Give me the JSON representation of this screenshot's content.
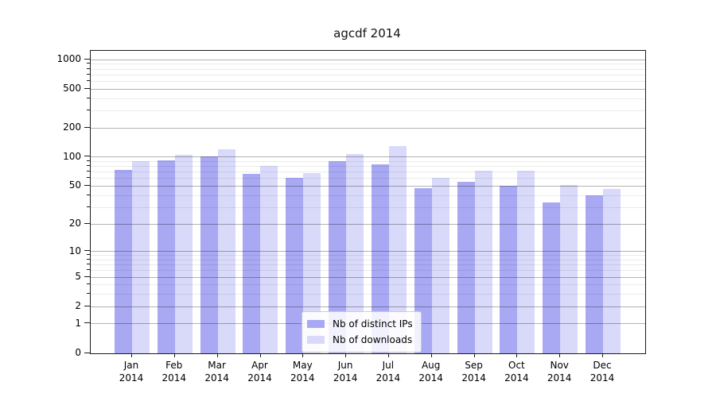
{
  "title": "agcdf 2014",
  "chart_data": {
    "type": "bar",
    "title": "agcdf 2014",
    "categories": [
      "Jan 2014",
      "Feb 2014",
      "Mar 2014",
      "Apr 2014",
      "May 2014",
      "Jun 2014",
      "Jul 2014",
      "Aug 2014",
      "Sep 2014",
      "Oct 2014",
      "Nov 2014",
      "Dec 2014"
    ],
    "series": [
      {
        "name": "Nb of distinct IPs",
        "color": "#a8a8f3",
        "values": [
          74,
          92,
          102,
          67,
          61,
          91,
          84,
          48,
          56,
          50,
          34,
          40
        ]
      },
      {
        "name": "Nb of downloads",
        "color": "#d9d9fa",
        "values": [
          90,
          105,
          121,
          81,
          68,
          108,
          130,
          61,
          72,
          72,
          51,
          47
        ]
      }
    ],
    "xlabel": "",
    "ylabel": "",
    "yscale": "log1p",
    "ylim": [
      0,
      1229
    ],
    "y_major_ticks": [
      0,
      1,
      2,
      5,
      10,
      20,
      50,
      100,
      200,
      500,
      1000
    ],
    "y_minor_ticks": [
      3,
      4,
      6,
      7,
      8,
      9,
      30,
      40,
      60,
      70,
      80,
      90,
      300,
      400,
      600,
      700,
      800,
      900
    ],
    "grid": "both",
    "legend_position": "lower center"
  },
  "style": {
    "bar_color_ips": "#a8a8f3",
    "bar_color_downloads": "#d9d9fa",
    "major_grid_color": "#b3b3b3",
    "minor_grid_color": "#ebebeb",
    "axis_color": "#1a1a1a",
    "background": "#ffffff"
  }
}
